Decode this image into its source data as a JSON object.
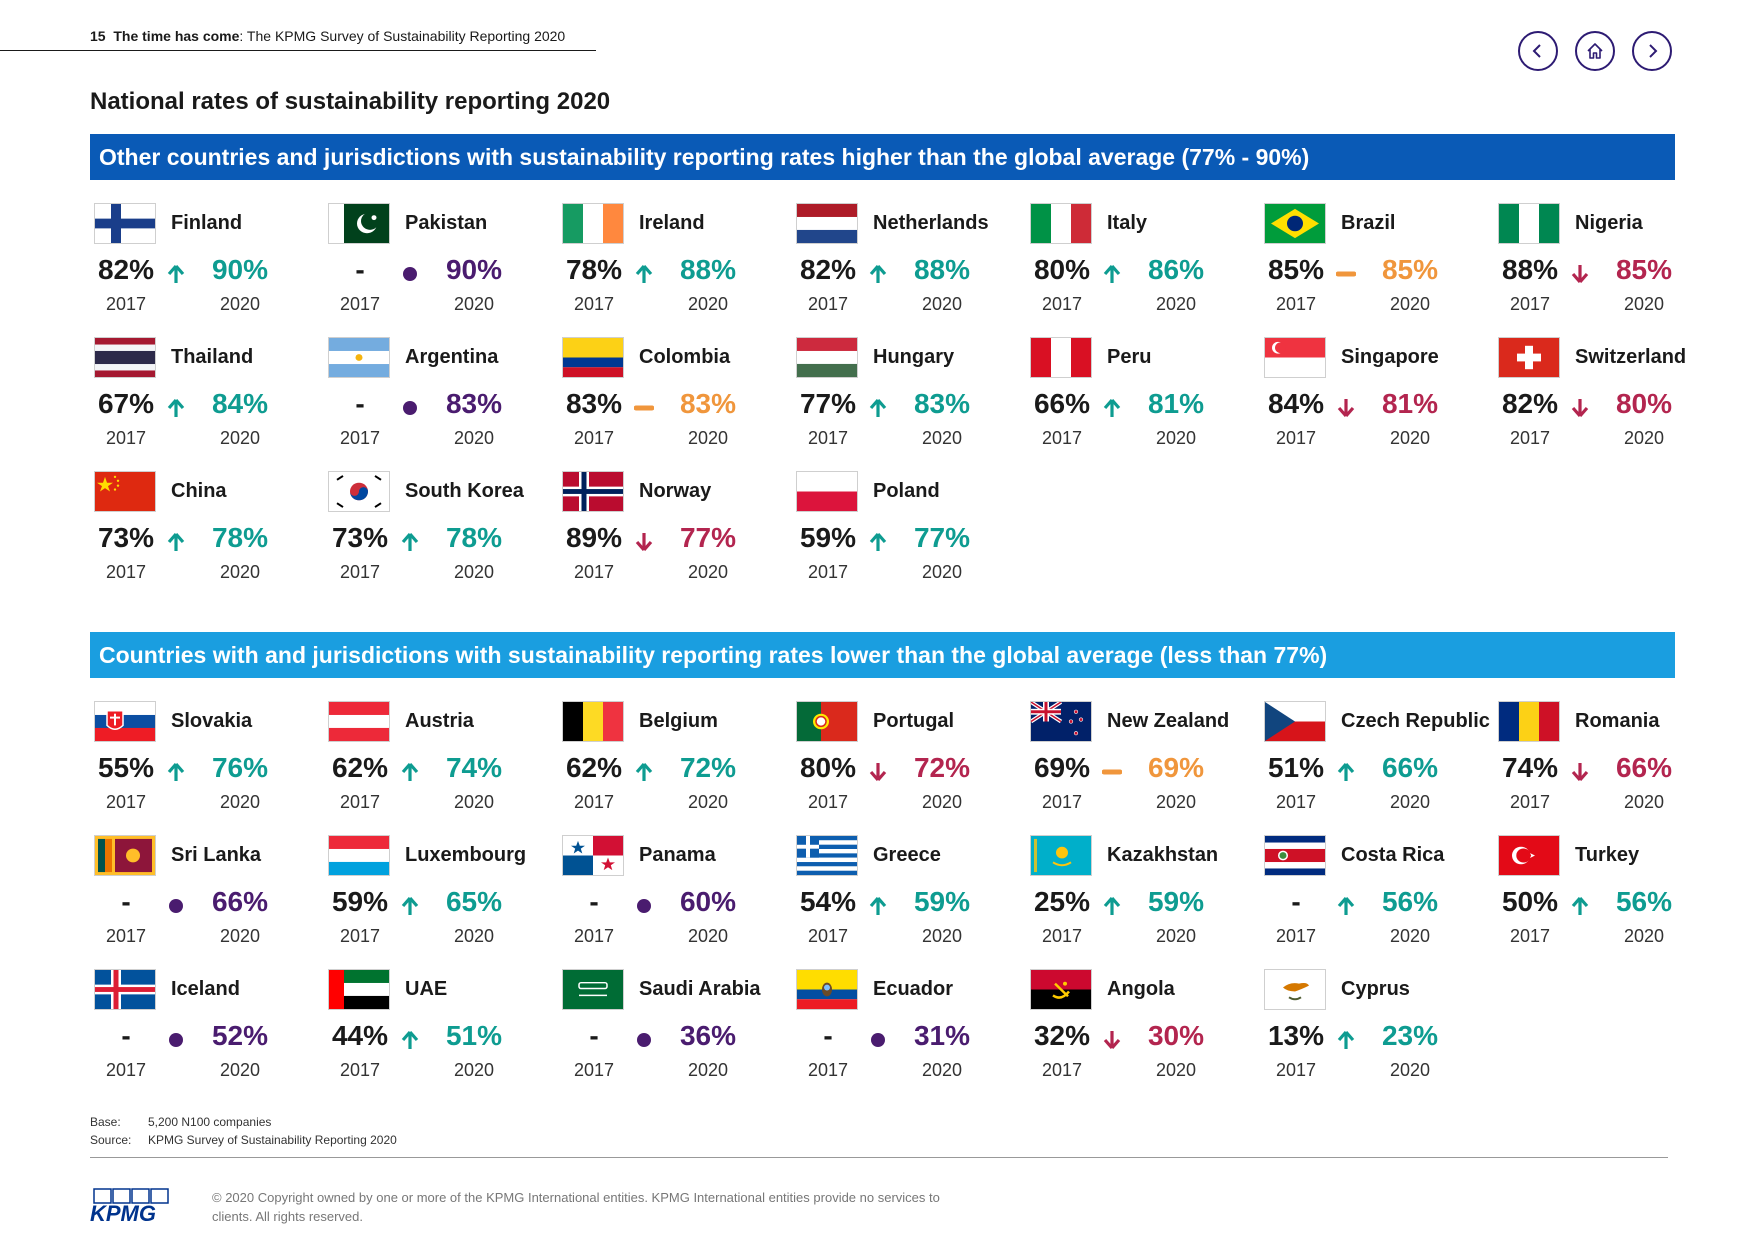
{
  "header": {
    "page_number": "15",
    "title_bold": "The time has come",
    "title_rest": ": The KPMG Survey of Sustainability Reporting 2020"
  },
  "nav": {
    "prev_icon": "chevron-left-icon",
    "home_icon": "home-icon",
    "next_icon": "chevron-right-icon"
  },
  "page_title": "National rates of sustainability reporting 2020",
  "section_high": {
    "heading": "Other countries and jurisdictions with sustainability reporting rates higher than the global average (77% - 90%)",
    "countries": [
      {
        "name": "Finland",
        "flag": "finland",
        "r2017": "82%",
        "r2020": "90%",
        "trend": "up",
        "y1": "2017",
        "y2": "2020"
      },
      {
        "name": "Pakistan",
        "flag": "pakistan",
        "r2017": "-",
        "r2020": "90%",
        "trend": "new",
        "y1": "2017",
        "y2": "2020"
      },
      {
        "name": "Ireland",
        "flag": "ireland",
        "r2017": "78%",
        "r2020": "88%",
        "trend": "up",
        "y1": "2017",
        "y2": "2020"
      },
      {
        "name": "Netherlands",
        "flag": "netherlands",
        "r2017": "82%",
        "r2020": "88%",
        "trend": "up",
        "y1": "2017",
        "y2": "2020"
      },
      {
        "name": "Italy",
        "flag": "italy",
        "r2017": "80%",
        "r2020": "86%",
        "trend": "up",
        "y1": "2017",
        "y2": "2020"
      },
      {
        "name": "Brazil",
        "flag": "brazil",
        "r2017": "85%",
        "r2020": "85%",
        "trend": "flat",
        "y1": "2017",
        "y2": "2020"
      },
      {
        "name": "Nigeria",
        "flag": "nigeria",
        "r2017": "88%",
        "r2020": "85%",
        "trend": "down",
        "y1": "2017",
        "y2": "2020"
      },
      {
        "name": "Thailand",
        "flag": "thailand",
        "r2017": "67%",
        "r2020": "84%",
        "trend": "up",
        "y1": "2017",
        "y2": "2020"
      },
      {
        "name": "Argentina",
        "flag": "argentina",
        "r2017": "-",
        "r2020": "83%",
        "trend": "new",
        "y1": "2017",
        "y2": "2020"
      },
      {
        "name": "Colombia",
        "flag": "colombia",
        "r2017": "83%",
        "r2020": "83%",
        "trend": "flat",
        "y1": "2017",
        "y2": "2020"
      },
      {
        "name": "Hungary",
        "flag": "hungary",
        "r2017": "77%",
        "r2020": "83%",
        "trend": "up",
        "y1": "2017",
        "y2": "2020"
      },
      {
        "name": "Peru",
        "flag": "peru",
        "r2017": "66%",
        "r2020": "81%",
        "trend": "up",
        "y1": "2017",
        "y2": "2020"
      },
      {
        "name": "Singapore",
        "flag": "singapore",
        "r2017": "84%",
        "r2020": "81%",
        "trend": "down",
        "y1": "2017",
        "y2": "2020"
      },
      {
        "name": "Switzerland",
        "flag": "switzerland",
        "r2017": "82%",
        "r2020": "80%",
        "trend": "down",
        "y1": "2017",
        "y2": "2020"
      },
      {
        "name": "China",
        "flag": "china",
        "r2017": "73%",
        "r2020": "78%",
        "trend": "up",
        "y1": "2017",
        "y2": "2020"
      },
      {
        "name": "South Korea",
        "flag": "south-korea",
        "r2017": "73%",
        "r2020": "78%",
        "trend": "up",
        "y1": "2017",
        "y2": "2020"
      },
      {
        "name": "Norway",
        "flag": "norway",
        "r2017": "89%",
        "r2020": "77%",
        "trend": "down",
        "y1": "2017",
        "y2": "2020"
      },
      {
        "name": "Poland",
        "flag": "poland",
        "r2017": "59%",
        "r2020": "77%",
        "trend": "up",
        "y1": "2017",
        "y2": "2020"
      }
    ]
  },
  "section_low": {
    "heading": "Countries with and jurisdictions with sustainability reporting rates lower than the global average (less than 77%)",
    "countries": [
      {
        "name": "Slovakia",
        "flag": "slovakia",
        "r2017": "55%",
        "r2020": "76%",
        "trend": "up",
        "y1": "2017",
        "y2": "2020"
      },
      {
        "name": "Austria",
        "flag": "austria",
        "r2017": "62%",
        "r2020": "74%",
        "trend": "up",
        "y1": "2017",
        "y2": "2020"
      },
      {
        "name": "Belgium",
        "flag": "belgium",
        "r2017": "62%",
        "r2020": "72%",
        "trend": "up",
        "y1": "2017",
        "y2": "2020"
      },
      {
        "name": "Portugal",
        "flag": "portugal",
        "r2017": "80%",
        "r2020": "72%",
        "trend": "down",
        "y1": "2017",
        "y2": "2020"
      },
      {
        "name": "New Zealand",
        "flag": "new-zealand",
        "r2017": "69%",
        "r2020": "69%",
        "trend": "flat",
        "y1": "2017",
        "y2": "2020"
      },
      {
        "name": "Czech Republic",
        "flag": "czech-republic",
        "r2017": "51%",
        "r2020": "66%",
        "trend": "up",
        "y1": "2017",
        "y2": "2020"
      },
      {
        "name": "Romania",
        "flag": "romania",
        "r2017": "74%",
        "r2020": "66%",
        "trend": "down",
        "y1": "2017",
        "y2": "2020"
      },
      {
        "name": "Sri Lanka",
        "flag": "sri-lanka",
        "r2017": "-",
        "r2020": "66%",
        "trend": "new",
        "y1": "2017",
        "y2": "2020"
      },
      {
        "name": "Luxembourg",
        "flag": "luxembourg",
        "r2017": "59%",
        "r2020": "65%",
        "trend": "up",
        "y1": "2017",
        "y2": "2020"
      },
      {
        "name": "Panama",
        "flag": "panama",
        "r2017": "-",
        "r2020": "60%",
        "trend": "new",
        "y1": "2017",
        "y2": "2020"
      },
      {
        "name": "Greece",
        "flag": "greece",
        "r2017": "54%",
        "r2020": "59%",
        "trend": "up",
        "y1": "2017",
        "y2": "2020"
      },
      {
        "name": "Kazakhstan",
        "flag": "kazakhstan",
        "r2017": "25%",
        "r2020": "59%",
        "trend": "up",
        "y1": "2017",
        "y2": "2020"
      },
      {
        "name": "Costa Rica",
        "flag": "costa-rica",
        "r2017": "-",
        "r2020": "56%",
        "trend": "up",
        "y1": "2017",
        "y2": "2020"
      },
      {
        "name": "Turkey",
        "flag": "turkey",
        "r2017": "50%",
        "r2020": "56%",
        "trend": "up",
        "y1": "2017",
        "y2": "2020"
      },
      {
        "name": "Iceland",
        "flag": "iceland",
        "r2017": "-",
        "r2020": "52%",
        "trend": "new",
        "y1": "2017",
        "y2": "2020"
      },
      {
        "name": "UAE",
        "flag": "uae",
        "r2017": "44%",
        "r2020": "51%",
        "trend": "up",
        "y1": "2017",
        "y2": "2020"
      },
      {
        "name": "Saudi Arabia",
        "flag": "saudi-arabia",
        "r2017": "-",
        "r2020": "36%",
        "trend": "new",
        "y1": "2017",
        "y2": "2020"
      },
      {
        "name": "Ecuador",
        "flag": "ecuador",
        "r2017": "-",
        "r2020": "31%",
        "trend": "new",
        "y1": "2017",
        "y2": "2020"
      },
      {
        "name": "Angola",
        "flag": "angola",
        "r2017": "32%",
        "r2020": "30%",
        "trend": "down",
        "y1": "2017",
        "y2": "2020"
      },
      {
        "name": "Cyprus",
        "flag": "cyprus",
        "r2017": "13%",
        "r2020": "23%",
        "trend": "up",
        "y1": "2017",
        "y2": "2020"
      }
    ]
  },
  "notes": {
    "base_label": "Base:",
    "base_value": "5,200 N100 companies",
    "source_label": "Source:",
    "source_value": "KPMG Survey of Sustainability Reporting 2020"
  },
  "footer": {
    "logo_text": "KPMG",
    "copyright": "© 2020 Copyright owned by one or more of the KPMG International entities. KPMG International entities provide no services to clients. All rights reserved."
  },
  "colors": {
    "band_high": "#0a5ab6",
    "band_low": "#1a9ee0",
    "up": "#0e9c91",
    "down": "#b3254f",
    "flat": "#f0963c",
    "new": "#4a1c6f",
    "nav": "#2d1b73"
  }
}
